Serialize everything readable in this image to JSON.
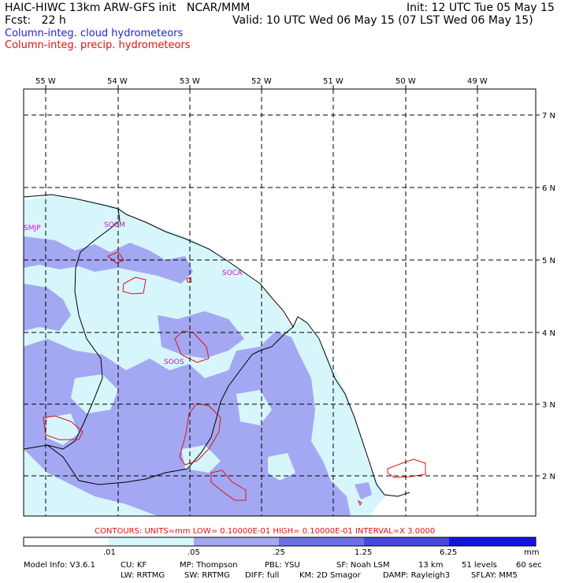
{
  "header": {
    "model_line": "HAIC-HIWC 13km ARW-GFS init   NCAR/MMM",
    "fcst_line": "Fcst:   22 h",
    "init_line": "Init: 12 UTC Tue 05 May 15",
    "valid_line": "Valid: 10 UTC Wed 06 May 15 (07 LST Wed 06 May 15)",
    "field1": "Column-integ. cloud hydrometeors",
    "field2": "Column-integ. precip. hydrometeors"
  },
  "colors": {
    "field1": "#1f1fd6",
    "field2": "#e01010",
    "station": "#d014d0",
    "shade_01": "#d6f6fc",
    "shade_05": "#a4a8f2",
    "shade_25": "#7070e6",
    "shade_125": "#4848dc",
    "shade_625": "#1414e0"
  },
  "map": {
    "lon_labels": [
      "55 W",
      "54 W",
      "53 W",
      "52 W",
      "51 W",
      "50 W",
      "49 W"
    ],
    "lat_labels": [
      "7 N",
      "6 N",
      "5 N",
      "4 N",
      "3 N",
      "2 N"
    ],
    "stations": [
      "SMJP",
      "SOCM",
      "SOCA",
      "SOOS"
    ]
  },
  "contours": {
    "line": "CONTOURS:  UNITS=mm  LOW= 0.10000E-01  HIGH= 0.10000E-01  INTERVAL=X  3.0000"
  },
  "legend": {
    "labels": [
      ".01",
      ".05",
      ".25",
      "1.25",
      "6.25"
    ],
    "unit": "mm"
  },
  "footer": {
    "line1": [
      "Model Info: V3.6.1",
      "CU: KF",
      "MP: Thompson",
      "PBL: YSU",
      "SF: Noah LSM",
      "13 km",
      "51 levels",
      "60 sec"
    ],
    "line2": [
      "LW: RRTMG",
      "SW: RRTMG",
      "DIFF: full",
      "KM: 2D Smagor",
      "DAMP: Rayleigh3",
      "SFLAY: MM5"
    ]
  }
}
